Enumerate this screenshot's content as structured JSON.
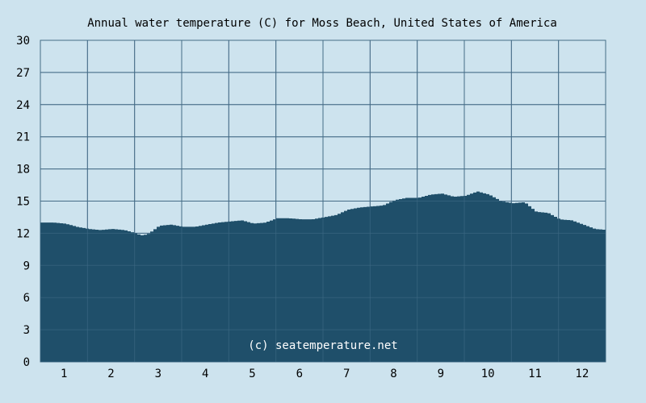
{
  "chart_data": {
    "type": "area",
    "title": "Annual water temperature (C) for Moss Beach, United States of America",
    "xlabel": "",
    "ylabel": "",
    "x_ticks": [
      "1",
      "2",
      "3",
      "4",
      "5",
      "6",
      "7",
      "8",
      "9",
      "10",
      "11",
      "12"
    ],
    "y_ticks": [
      0,
      3,
      6,
      9,
      12,
      15,
      18,
      21,
      24,
      27,
      30
    ],
    "xlim": [
      0.5,
      12.5
    ],
    "ylim": [
      0,
      30
    ],
    "grid": true,
    "colors": {
      "fill": "#1f4f6a",
      "grid": "#4f6f8a",
      "background": "#cde3ee"
    },
    "series": [
      {
        "x": [
          0.5,
          0.75,
          1.0,
          1.25,
          1.5,
          1.75,
          2.0,
          2.25,
          2.5,
          2.6,
          2.75,
          3.0,
          3.25,
          3.5,
          3.75,
          4.0,
          4.25,
          4.5,
          4.75,
          5.0,
          5.25,
          5.5,
          5.75,
          6.0,
          6.25,
          6.5,
          6.75,
          7.0,
          7.25,
          7.5,
          7.75,
          8.0,
          8.25,
          8.5,
          8.75,
          9.0,
          9.25,
          9.5,
          9.75,
          10.0,
          10.25,
          10.5,
          10.75,
          11.0,
          11.25,
          11.5,
          11.75,
          12.0,
          12.25,
          12.5
        ],
        "values": [
          13.0,
          13.0,
          12.9,
          12.6,
          12.4,
          12.3,
          12.4,
          12.3,
          12.0,
          11.8,
          11.9,
          12.7,
          12.8,
          12.6,
          12.6,
          12.8,
          13.0,
          13.1,
          13.2,
          12.9,
          13.0,
          13.4,
          13.4,
          13.3,
          13.3,
          13.5,
          13.7,
          14.2,
          14.4,
          14.5,
          14.6,
          15.1,
          15.3,
          15.3,
          15.6,
          15.7,
          15.4,
          15.5,
          15.9,
          15.6,
          15.0,
          14.8,
          14.9,
          14.0,
          13.9,
          13.3,
          13.2,
          12.8,
          12.4,
          12.3
        ]
      }
    ]
  },
  "credit": "(c) seatemperature.net"
}
